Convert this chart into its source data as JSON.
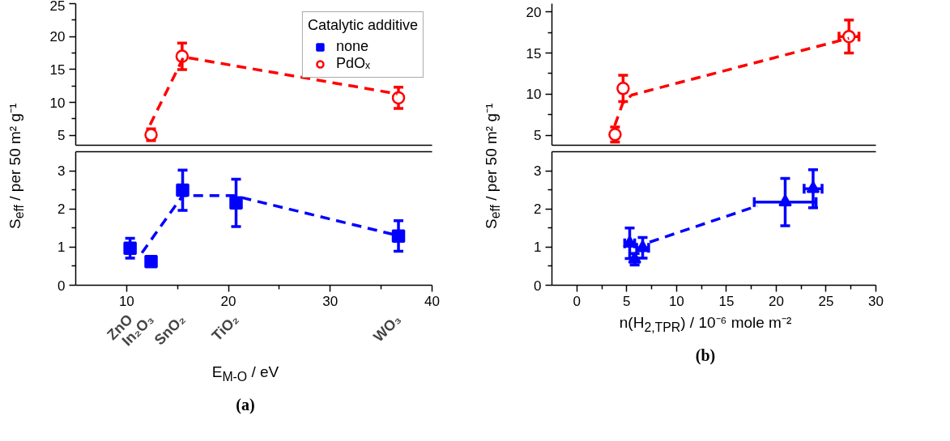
{
  "chart_data": [
    {
      "type": "scatter",
      "xlim": [
        5,
        40
      ],
      "ylim": [
        3.5,
        25
      ],
      "yticks": [
        5,
        {
          "value": 7.5,
          "label": null
        },
        10,
        {
          "value": 12.5,
          "label": null
        },
        15,
        {
          "value": 17.5,
          "label": null
        },
        20,
        {
          "value": 22.5,
          "label": null
        },
        25
      ],
      "tick_labels": "y",
      "grid": false,
      "legend": "top right",
      "legend_title": "Catalytic additive",
      "series": [
        {
          "name": "PdOₓ",
          "marker": "circle",
          "color": "#ff0000",
          "x": [
            12.4,
            15.45,
            36.7
          ],
          "values": [
            5.1,
            17.0,
            10.7
          ],
          "errors": [
            0.9,
            2,
            1.6
          ]
        },
        {
          "type": "line",
          "line_style": "dashed",
          "color": "#ff0000",
          "x": [
            12.3,
            15.6,
            36.6
          ],
          "values": [
            6.6,
            16.9,
            11.3
          ]
        }
      ]
    },
    {
      "type": "scatter",
      "ylabel": "S$_{eff}$ / per 50 m² g⁻¹",
      "xlabel": "E$_{M-O}$ / eV",
      "title": "(a)",
      "xlim": [
        5,
        40
      ],
      "xticks": [
        10,
        {
          "value": 15,
          "label": null
        },
        20,
        {
          "value": 25,
          "label": null
        },
        30,
        {
          "value": 35,
          "label": null
        },
        40
      ],
      "ylim": [
        0,
        3.5
      ],
      "yticks": [
        0,
        {
          "value": 0.5,
          "label": null
        },
        1,
        {
          "value": 1.5,
          "label": null
        },
        2,
        {
          "value": 2.5,
          "label": null
        },
        3
      ],
      "grid": false,
      "annotations": [
        "ZnO",
        "In₂O₃",
        "SnO₂",
        "TiO₂",
        "WO₃"
      ],
      "series": [
        {
          "name": "none",
          "marker": "square",
          "color": "#0000ff",
          "x": [
            10.34,
            12.4,
            15.5,
            20.75,
            36.7
          ],
          "values": [
            0.97,
            0.62,
            2.49,
            2.16,
            1.29
          ],
          "errors": [
            0.26,
            0.1,
            0.53,
            0.62,
            0.4
          ]
        },
        {
          "type": "line",
          "line_style": "dashed",
          "color": "#0000ff",
          "x": [
            11.5,
            15.5,
            20.5,
            36.7
          ],
          "values": [
            0.85,
            2.35,
            2.35,
            1.3
          ]
        }
      ]
    },
    {
      "type": "scatter",
      "xlim": [
        -2.5,
        30
      ],
      "ylim": [
        3.8,
        21
      ],
      "yticks": [
        5,
        {
          "value": 7.5,
          "label": null
        },
        10,
        {
          "value": 12.5,
          "label": null
        },
        15,
        {
          "value": 17.5,
          "label": null
        },
        20
      ],
      "tick_labels": "y",
      "grid": false,
      "series": [
        {
          "marker": "circle",
          "color": "#ff0000",
          "x": [
            3.83,
            4.64,
            27.3
          ],
          "values": [
            5.1,
            10.7,
            17.0
          ],
          "errors": [
            0.9,
            1.6,
            2.0
          ],
          "xerrors": [
            0.3,
            0.3,
            1.0
          ]
        },
        {
          "type": "line",
          "line_style": "dashed",
          "color": "#ff0000",
          "x": [
            3.8,
            4.6,
            5.5,
            27.3
          ],
          "values": [
            6.2,
            8.9,
            9.9,
            16.8
          ]
        }
      ]
    },
    {
      "type": "scatter",
      "ylabel": "S$_{eff}$ / per 50 m² g⁻¹",
      "xlabel": "n(H$_{2,TPR}$) / 10⁻⁶ mole m⁻²",
      "xlim": [
        -2.5,
        30
      ],
      "xticks": [
        0,
        {
          "value": 2.5,
          "label": null
        },
        5,
        {
          "value": 7.5,
          "label": null
        },
        10,
        {
          "value": 12.5,
          "label": null
        },
        15,
        {
          "value": 17.5,
          "label": null
        },
        20,
        {
          "value": 22.5,
          "label": null
        },
        25,
        {
          "value": 27.5,
          "label": null
        },
        30
      ],
      "ylim": [
        0,
        3.5
      ],
      "yticks": [
        0,
        {
          "value": 0.5,
          "label": null
        },
        1,
        {
          "value": 1.5,
          "label": null
        },
        2,
        {
          "value": 2.5,
          "label": null
        },
        3
      ],
      "grid": false,
      "title": "(b)",
      "series": [
        {
          "marker": "triangle",
          "color": "#0000ff",
          "x": [
            5.3,
            6.6,
            5.8,
            20.9,
            23.7
          ],
          "values": [
            1.1,
            0.98,
            0.68,
            2.18,
            2.53
          ],
          "errors": [
            0.4,
            0.27,
            0.15,
            0.62,
            0.5
          ],
          "xerrors": [
            0.5,
            0.6,
            null,
            3.1,
            0.9
          ]
        },
        {
          "type": "line",
          "line_style": "dashed",
          "color": "#0000ff",
          "x": [
            7.3,
            18.1
          ],
          "values": [
            1.13,
            2.08
          ]
        }
      ]
    }
  ]
}
